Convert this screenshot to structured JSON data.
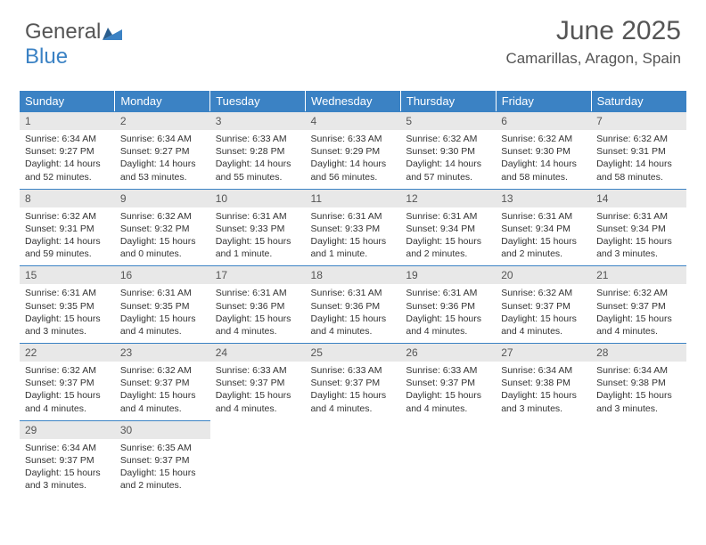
{
  "logo": {
    "line1": "General",
    "line2": "Blue"
  },
  "title": "June 2025",
  "location": "Camarillas, Aragon, Spain",
  "colors": {
    "brand": "#3b82c4",
    "header_text": "#ffffff",
    "daynum_bg": "#e8e8e8",
    "text": "#333333",
    "muted": "#555555",
    "background": "#ffffff"
  },
  "weekdays": [
    "Sunday",
    "Monday",
    "Tuesday",
    "Wednesday",
    "Thursday",
    "Friday",
    "Saturday"
  ],
  "days": [
    {
      "n": "1",
      "sr": "6:34 AM",
      "ss": "9:27 PM",
      "dl": "14 hours and 52 minutes."
    },
    {
      "n": "2",
      "sr": "6:34 AM",
      "ss": "9:27 PM",
      "dl": "14 hours and 53 minutes."
    },
    {
      "n": "3",
      "sr": "6:33 AM",
      "ss": "9:28 PM",
      "dl": "14 hours and 55 minutes."
    },
    {
      "n": "4",
      "sr": "6:33 AM",
      "ss": "9:29 PM",
      "dl": "14 hours and 56 minutes."
    },
    {
      "n": "5",
      "sr": "6:32 AM",
      "ss": "9:30 PM",
      "dl": "14 hours and 57 minutes."
    },
    {
      "n": "6",
      "sr": "6:32 AM",
      "ss": "9:30 PM",
      "dl": "14 hours and 58 minutes."
    },
    {
      "n": "7",
      "sr": "6:32 AM",
      "ss": "9:31 PM",
      "dl": "14 hours and 58 minutes."
    },
    {
      "n": "8",
      "sr": "6:32 AM",
      "ss": "9:31 PM",
      "dl": "14 hours and 59 minutes."
    },
    {
      "n": "9",
      "sr": "6:32 AM",
      "ss": "9:32 PM",
      "dl": "15 hours and 0 minutes."
    },
    {
      "n": "10",
      "sr": "6:31 AM",
      "ss": "9:33 PM",
      "dl": "15 hours and 1 minute."
    },
    {
      "n": "11",
      "sr": "6:31 AM",
      "ss": "9:33 PM",
      "dl": "15 hours and 1 minute."
    },
    {
      "n": "12",
      "sr": "6:31 AM",
      "ss": "9:34 PM",
      "dl": "15 hours and 2 minutes."
    },
    {
      "n": "13",
      "sr": "6:31 AM",
      "ss": "9:34 PM",
      "dl": "15 hours and 2 minutes."
    },
    {
      "n": "14",
      "sr": "6:31 AM",
      "ss": "9:34 PM",
      "dl": "15 hours and 3 minutes."
    },
    {
      "n": "15",
      "sr": "6:31 AM",
      "ss": "9:35 PM",
      "dl": "15 hours and 3 minutes."
    },
    {
      "n": "16",
      "sr": "6:31 AM",
      "ss": "9:35 PM",
      "dl": "15 hours and 4 minutes."
    },
    {
      "n": "17",
      "sr": "6:31 AM",
      "ss": "9:36 PM",
      "dl": "15 hours and 4 minutes."
    },
    {
      "n": "18",
      "sr": "6:31 AM",
      "ss": "9:36 PM",
      "dl": "15 hours and 4 minutes."
    },
    {
      "n": "19",
      "sr": "6:31 AM",
      "ss": "9:36 PM",
      "dl": "15 hours and 4 minutes."
    },
    {
      "n": "20",
      "sr": "6:32 AM",
      "ss": "9:37 PM",
      "dl": "15 hours and 4 minutes."
    },
    {
      "n": "21",
      "sr": "6:32 AM",
      "ss": "9:37 PM",
      "dl": "15 hours and 4 minutes."
    },
    {
      "n": "22",
      "sr": "6:32 AM",
      "ss": "9:37 PM",
      "dl": "15 hours and 4 minutes."
    },
    {
      "n": "23",
      "sr": "6:32 AM",
      "ss": "9:37 PM",
      "dl": "15 hours and 4 minutes."
    },
    {
      "n": "24",
      "sr": "6:33 AM",
      "ss": "9:37 PM",
      "dl": "15 hours and 4 minutes."
    },
    {
      "n": "25",
      "sr": "6:33 AM",
      "ss": "9:37 PM",
      "dl": "15 hours and 4 minutes."
    },
    {
      "n": "26",
      "sr": "6:33 AM",
      "ss": "9:37 PM",
      "dl": "15 hours and 4 minutes."
    },
    {
      "n": "27",
      "sr": "6:34 AM",
      "ss": "9:38 PM",
      "dl": "15 hours and 3 minutes."
    },
    {
      "n": "28",
      "sr": "6:34 AM",
      "ss": "9:38 PM",
      "dl": "15 hours and 3 minutes."
    },
    {
      "n": "29",
      "sr": "6:34 AM",
      "ss": "9:37 PM",
      "dl": "15 hours and 3 minutes."
    },
    {
      "n": "30",
      "sr": "6:35 AM",
      "ss": "9:37 PM",
      "dl": "15 hours and 2 minutes."
    }
  ],
  "labels": {
    "sunrise": "Sunrise:",
    "sunset": "Sunset:",
    "daylight": "Daylight:"
  }
}
